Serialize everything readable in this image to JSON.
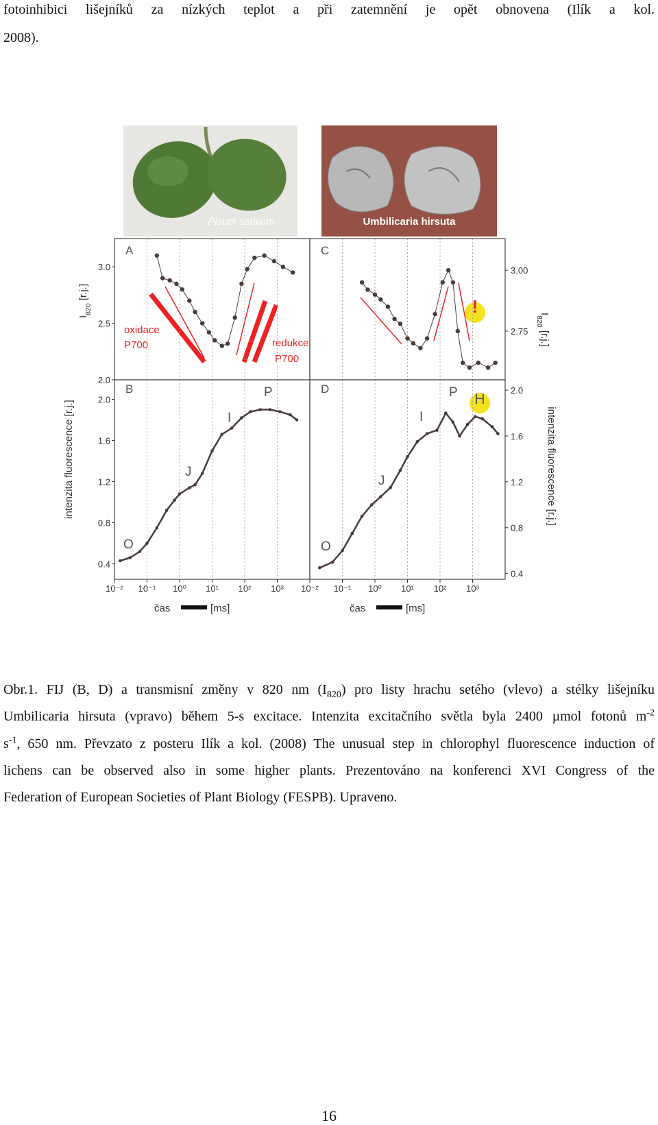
{
  "text_lines": [
    "fotoinhibici lišejníků za nízkých teplot a při zatemnění je opět obnovena (Ilík a kol.",
    "2008)."
  ],
  "photos": [
    "Pisum sativum",
    "Umbilicaria hirsuta"
  ],
  "chart_data": [
    {
      "type": "scatter",
      "label": "A",
      "x_scale": "log",
      "y_axis": "left",
      "color": "#4a3b3b",
      "xlim": [
        0.01,
        10000
      ],
      "ylim": [
        2.0,
        3.25
      ],
      "yticks": [
        {
          "value": 2,
          "label": "2.0"
        },
        2.5,
        {
          "value": 3,
          "label": "3.0"
        }
      ],
      "y_label": [
        "I",
        {
          "sub": "820"
        },
        " [r.j.]"
      ],
      "annotations": [
        "oxidace",
        "P700",
        "redukce",
        "P700"
      ],
      "x": [
        0.2,
        0.3,
        0.5,
        0.8,
        1.2,
        2,
        3,
        5,
        8,
        12,
        20,
        30,
        50,
        80,
        120,
        200,
        400,
        800,
        1500,
        3000
      ],
      "y": [
        3.1,
        2.9,
        2.88,
        2.85,
        2.8,
        2.7,
        2.6,
        2.5,
        2.42,
        2.35,
        2.3,
        2.32,
        2.55,
        2.85,
        2.98,
        3.08,
        3.1,
        3.05,
        3.0,
        2.95
      ]
    },
    {
      "type": "scatter",
      "label": "B",
      "x_scale": "log",
      "y_axis": "left",
      "color": "#4a3b3b",
      "xlim": [
        0.01,
        10000
      ],
      "ylim": [
        0.25,
        2.19
      ],
      "yticks": [
        0.4,
        0.8,
        1.2,
        1.6,
        {
          "value": 2,
          "label": "2.0"
        }
      ],
      "xticks": [
        {
          "value": 0.01,
          "label": "10⁻²"
        },
        {
          "value": 0.1,
          "label": "10⁻¹"
        },
        {
          "value": 1,
          "label": "10⁰"
        },
        {
          "value": 10,
          "label": "10¹"
        },
        {
          "value": 100,
          "label": "10²"
        },
        {
          "value": 1000,
          "label": "10³"
        }
      ],
      "x_label": [
        "čas",
        "[ms]"
      ],
      "y_label": [
        "intenzita fluorescence [r.j.]"
      ],
      "annotations": [
        "O",
        "J",
        "I",
        "P"
      ],
      "x": [
        0.015,
        0.03,
        0.06,
        0.1,
        0.2,
        0.4,
        0.7,
        1,
        2,
        3,
        5,
        10,
        20,
        40,
        80,
        150,
        300,
        600,
        1200,
        2500,
        4000
      ],
      "y": [
        0.43,
        0.46,
        0.52,
        0.6,
        0.75,
        0.92,
        1.02,
        1.08,
        1.14,
        1.17,
        1.28,
        1.5,
        1.66,
        1.72,
        1.82,
        1.88,
        1.9,
        1.9,
        1.88,
        1.85,
        1.8
      ]
    },
    {
      "type": "scatter",
      "label": "C",
      "x_scale": "log",
      "y_axis": "right",
      "color": "#4a3b3b",
      "xlim": [
        0.01,
        10000
      ],
      "ylim": [
        2.55,
        3.13
      ],
      "yticks": [
        2.75,
        {
          "value": 3,
          "label": "3.00"
        }
      ],
      "y_label": [
        "I",
        {
          "sub": "820"
        },
        " [r.j.]"
      ],
      "annotations": [
        "!"
      ],
      "x": [
        0.4,
        0.6,
        1,
        1.5,
        2.5,
        4,
        6,
        10,
        15,
        25,
        40,
        70,
        120,
        180,
        250,
        350,
        500,
        800,
        1500,
        3000,
        5000
      ],
      "y": [
        2.95,
        2.92,
        2.9,
        2.88,
        2.85,
        2.8,
        2.78,
        2.72,
        2.7,
        2.68,
        2.72,
        2.82,
        2.95,
        3.0,
        2.95,
        2.75,
        2.62,
        2.6,
        2.62,
        2.6,
        2.62
      ]
    },
    {
      "type": "scatter",
      "label": "D",
      "x_scale": "log",
      "y_axis": "right",
      "color": "#4a3b3b",
      "xlim": [
        0.01,
        10000
      ],
      "ylim": [
        0.35,
        2.09
      ],
      "yticks": [
        0.4,
        0.8,
        1.2,
        1.6,
        {
          "value": 2,
          "label": "2.0"
        }
      ],
      "xticks": [
        {
          "value": 0.01,
          "label": "10⁻²"
        },
        {
          "value": 0.1,
          "label": "10⁻¹"
        },
        {
          "value": 1,
          "label": "10⁰"
        },
        {
          "value": 10,
          "label": "10¹"
        },
        {
          "value": 100,
          "label": "10²"
        },
        {
          "value": 1000,
          "label": "10³"
        }
      ],
      "x_label": [
        "čas",
        "[ms]"
      ],
      "y_label": [
        "intenzita fluorescence [r.j.]"
      ],
      "annotations": [
        "O",
        "J",
        "I",
        "P",
        "H"
      ],
      "x": [
        0.02,
        0.05,
        0.1,
        0.2,
        0.4,
        0.8,
        1.5,
        3,
        6,
        10,
        20,
        40,
        80,
        150,
        250,
        400,
        700,
        1200,
        2000,
        4000,
        6000
      ],
      "y": [
        0.45,
        0.5,
        0.6,
        0.75,
        0.9,
        1.0,
        1.07,
        1.15,
        1.3,
        1.42,
        1.55,
        1.62,
        1.65,
        1.8,
        1.72,
        1.6,
        1.7,
        1.77,
        1.75,
        1.68,
        1.62
      ]
    }
  ],
  "caption": [
    [
      "Obr.1. FIJ (B, D) a transmisní změny v 820 nm (I",
      {
        "sub": "820"
      },
      ") pro listy hrachu setého (vlevo) a stélky lišejníku"
    ],
    [
      "Umbilicaria hirsuta (vpravo) během 5-s excitace. Intenzita excitačního světla byla 2400 µmol fotonů m",
      {
        "sup": "-2"
      }
    ],
    [
      "s",
      {
        "sup": "-1"
      },
      ", 650 nm. Převzato z posteru Ilík a kol. (2008) The unusual step in chlorophyl fluorescence induction of"
    ],
    [
      "lichens can be observed also in some higher plants. Prezentováno na konferenci XVI Congress of the"
    ],
    [
      "Federation of European Societies of Plant Biology (FESPB). Upraveno."
    ]
  ],
  "page_number": "16"
}
